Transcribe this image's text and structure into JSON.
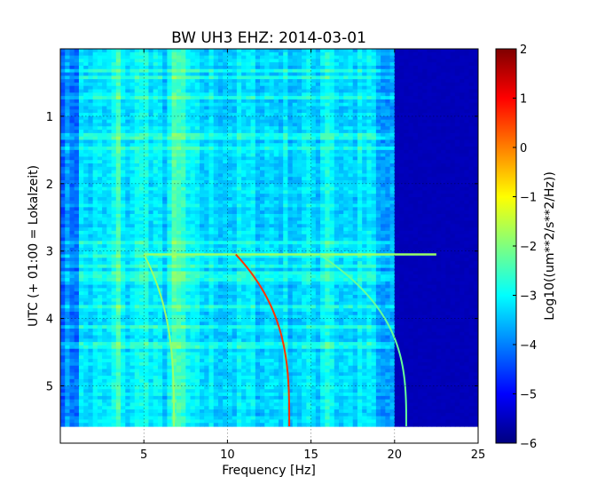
{
  "chart_data": {
    "type": "heatmap",
    "title": "BW UH3 EHZ: 2014-03-01",
    "xlabel": "Frequency [Hz]",
    "ylabel": "UTC (+ 01:00 = Lokalzeit)",
    "xlim": [
      0,
      25
    ],
    "ylim": [
      5.85,
      0
    ],
    "data_extent_hours": 5.6,
    "xticks": [
      5,
      10,
      15,
      20,
      25
    ],
    "yticks": [
      1,
      2,
      3,
      4,
      5
    ],
    "grid": true,
    "colorbar": {
      "label": "Log10((um**2/s**2/Hz))",
      "range": [
        -6,
        2
      ],
      "ticks": [
        2,
        1,
        0,
        -1,
        -2,
        -3,
        -4,
        -5,
        -6
      ],
      "colormap": "jet"
    },
    "background_level": -3.3,
    "quiet_band": {
      "from_hz": 20,
      "to_hz": 25,
      "level": -5.6
    },
    "bright_bands_hz": [
      3.5,
      4.9,
      6.8,
      7.3,
      16.0
    ],
    "sweeps": [
      {
        "name": "",
        "start_hz": 5.0,
        "start_hour": 3.05,
        "end_hz": 6.8,
        "end_hour": 5.6,
        "level": -1.8
      },
      {
        "name": "",
        "start_hz": 10.5,
        "start_hour": 3.05,
        "end_hz": 13.7,
        "end_hour": 5.6,
        "level": 0.6
      },
      {
        "name": "",
        "start_hz": 15.5,
        "start_hour": 3.05,
        "end_hz": 20.7,
        "end_hour": 5.6,
        "level": -2.2
      }
    ],
    "horizontal_line": {
      "hour": 3.05,
      "from_hz": 5.0,
      "to_hz": 22.5,
      "level": -1.8
    }
  }
}
